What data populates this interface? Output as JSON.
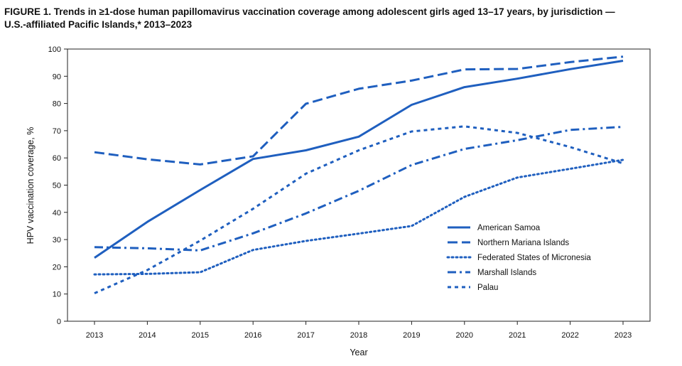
{
  "figure": {
    "title_line1": "FIGURE 1. Trends in ≥1-dose human papillomavirus vaccination coverage among adolescent girls aged 13–17 years, by jurisdiction —",
    "title_line2": "U.S.-affiliated Pacific Islands,* 2013–2023"
  },
  "chart_data": {
    "type": "line",
    "xlabel": "Year",
    "ylabel": "HPV vaccination coverage, %",
    "ylim": [
      0,
      100
    ],
    "yticks": [
      0,
      10,
      20,
      30,
      40,
      50,
      60,
      70,
      80,
      90,
      100
    ],
    "x": [
      2013,
      2014,
      2015,
      2016,
      2017,
      2018,
      2019,
      2020,
      2021,
      2022,
      2023
    ],
    "x_labels": [
      "2013",
      "2014",
      "2015",
      "2016",
      "2017",
      "2018",
      "2019",
      "2020",
      "2021",
      "2022",
      "2023"
    ],
    "grid": false,
    "legend_position": "lower-right",
    "line_color": "#1f5fbf",
    "series": [
      {
        "name": "American Samoa",
        "dash": "solid",
        "values": [
          23.3,
          36.5,
          48.2,
          59.6,
          62.8,
          67.8,
          79.5,
          86.0,
          89.1,
          92.6,
          95.7
        ]
      },
      {
        "name": "Northern Mariana Islands",
        "dash": "dashed",
        "values": [
          62.1,
          59.5,
          57.6,
          60.6,
          79.9,
          85.4,
          88.4,
          92.5,
          92.7,
          95.2,
          97.2
        ]
      },
      {
        "name": "Federated States of Micronesia",
        "dash": "dotted",
        "values": [
          17.2,
          17.4,
          18.0,
          26.2,
          29.5,
          32.2,
          35.0,
          45.7,
          52.8,
          56.0,
          59.3
        ]
      },
      {
        "name": "Marshall Islands",
        "dash": "dashdot",
        "values": [
          27.2,
          26.8,
          26.0,
          32.3,
          39.6,
          47.9,
          57.4,
          63.3,
          66.5,
          70.3,
          71.4
        ]
      },
      {
        "name": "Palau",
        "dash": "shortdash",
        "values": [
          10.3,
          18.8,
          29.6,
          41.3,
          54.2,
          62.8,
          69.7,
          71.6,
          69.2,
          64.0,
          58.0
        ]
      }
    ]
  }
}
